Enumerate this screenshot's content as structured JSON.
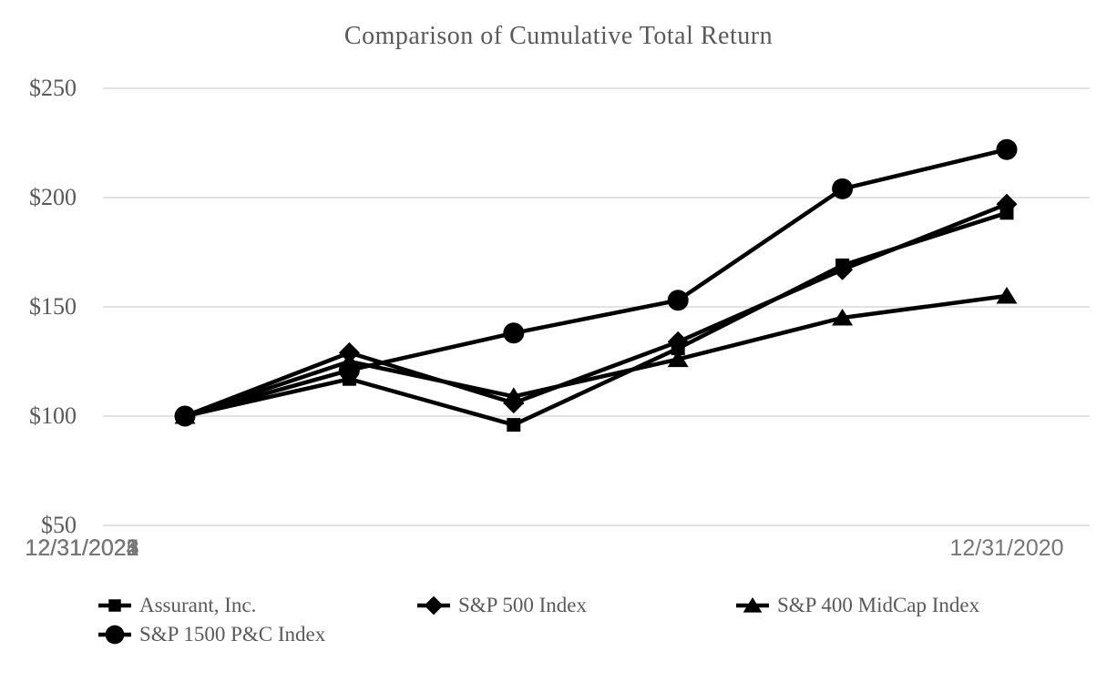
{
  "colors": {
    "background": "#ffffff",
    "series": "#000000",
    "gridline": "#d9d9d9",
    "serif_text": "#595959",
    "axis_text": "#767676"
  },
  "chart_data": {
    "type": "line",
    "title": "Comparison of Cumulative Total Return",
    "x": [
      "12/31/2020",
      "12/31/2021",
      "12/31/2022",
      "12/31/2023",
      "12/31/2024",
      "12/31/2025"
    ],
    "y_ticks": [
      "$250",
      "$200",
      "$150",
      "$100",
      "$50"
    ],
    "y_tick_values": [
      250,
      200,
      150,
      100,
      50
    ],
    "ylim": [
      50,
      250
    ],
    "grid": "horizontal",
    "legend_position": "bottom",
    "series": [
      {
        "name": "Assurant, Inc.",
        "marker": "square",
        "values": [
          100,
          117,
          96,
          131,
          169,
          193
        ]
      },
      {
        "name": "S&P 500 Index",
        "marker": "diamond",
        "values": [
          100,
          129,
          106,
          134,
          167,
          197
        ]
      },
      {
        "name": "S&P 400 MidCap Index",
        "marker": "triangle",
        "values": [
          100,
          125,
          109,
          126,
          145,
          155
        ]
      },
      {
        "name": "S&P 1500 P&C Index",
        "marker": "circle",
        "values": [
          100,
          121,
          138,
          153,
          204,
          222
        ]
      }
    ]
  }
}
